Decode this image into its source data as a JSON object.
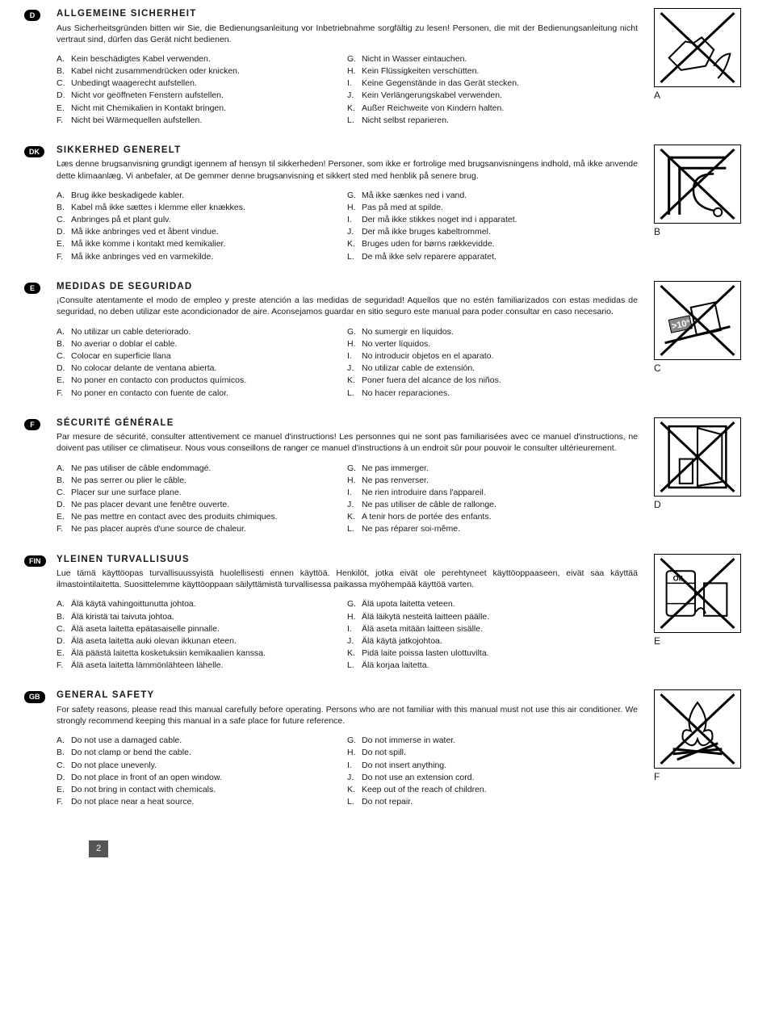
{
  "page_number": "2",
  "figure_labels": [
    "A",
    "B",
    "C",
    "D",
    "E",
    "F"
  ],
  "sections": [
    {
      "badge": "D",
      "heading": "ALLGEMEINE SICHERHEIT",
      "intro": "Aus Sicherheitsgründen bitten wir Sie, die Bedienungsanleitung vor Inbetriebnahme sorgfältig zu lesen! Personen, die mit der Bedienungsanleitung nicht vertraut sind, dürfen das Gerät nicht bedienen.",
      "left": [
        [
          "A.",
          "Kein beschädigtes Kabel verwenden."
        ],
        [
          "B.",
          "Kabel nicht zusammendrücken oder knicken."
        ],
        [
          "C.",
          "Unbedingt waagerecht aufstellen."
        ],
        [
          "D.",
          "Nicht vor geöffneten Fenstern aufstellen."
        ],
        [
          "E.",
          "Nicht mit Chemikalien in Kontakt bringen."
        ],
        [
          "F.",
          "Nicht bei Wärmequellen aufstellen."
        ]
      ],
      "right": [
        [
          "G.",
          "Nicht in Wasser eintauchen."
        ],
        [
          "H.",
          "Kein Flüssigkeiten verschütten."
        ],
        [
          "I.",
          "Keine Gegenstände in das Gerät stecken."
        ],
        [
          "J.",
          "Kein Verlängerungskabel verwenden."
        ],
        [
          "K.",
          "Außer Reichweite von Kindern halten."
        ],
        [
          "L.",
          "Nicht selbst reparieren."
        ]
      ]
    },
    {
      "badge": "DK",
      "heading": "SIKKERHED GENERELT",
      "intro": "Læs denne brugsanvisning grundigt igennem af hensyn til sikkerheden! Personer, som ikke er fortrolige med brugsanvisningens indhold, må ikke anvende dette klimaanlæg. Vi anbefaler, at De gemmer denne brugsanvisning et sikkert sted med henblik på senere brug.",
      "left": [
        [
          "A.",
          "Brug ikke beskadigede kabler."
        ],
        [
          "B.",
          "Kabel må ikke sættes i klemme eller knækkes."
        ],
        [
          "C.",
          "Anbringes på et plant gulv."
        ],
        [
          "D.",
          "Må ikke anbringes ved et åbent vindue."
        ],
        [
          "E.",
          "Må ikke komme i kontakt med kemikalier."
        ],
        [
          "F.",
          "Må ikke anbringes ved en varmekilde."
        ]
      ],
      "right": [
        [
          "G.",
          "Må ikke sænkes ned i vand."
        ],
        [
          "H.",
          "Pas på med at spilde."
        ],
        [
          "I.",
          "Der må ikke stikkes noget ind i apparatet."
        ],
        [
          "J.",
          "Der må ikke bruges kabeltrommel."
        ],
        [
          "K.",
          "Bruges uden for børns rækkevidde."
        ],
        [
          "L.",
          "De må ikke selv reparere apparatet."
        ]
      ]
    },
    {
      "badge": "E",
      "heading": "MEDIDAS DE SEGURIDAD",
      "intro": "¡Consulte atentamente el modo de empleo y preste atención a las medidas de seguridad! Aquellos que no estén familiarizados con estas medidas de seguridad, no deben utilizar este acondicionador de aire. Aconsejamos guardar en sitio seguro este manual para poder consultar en caso necesario.",
      "left": [
        [
          "A.",
          "No utilizar un cable deteriorado."
        ],
        [
          "B.",
          "No averiar o doblar el cable."
        ],
        [
          "C.",
          "Colocar en superficie llana"
        ],
        [
          "D.",
          "No colocar delante de ventana abierta."
        ],
        [
          "E.",
          "No poner en contacto con productos químicos."
        ],
        [
          "F.",
          "No poner en contacto con fuente de calor."
        ]
      ],
      "right": [
        [
          "G.",
          "No sumergir en líquidos."
        ],
        [
          "H.",
          "No verter líquidos."
        ],
        [
          "I.",
          "No introducir objetos en el aparato."
        ],
        [
          "J.",
          "No utilizar cable de extensión."
        ],
        [
          "K.",
          "Poner fuera del alcance de los niños."
        ],
        [
          "L.",
          "No hacer reparaciones."
        ]
      ]
    },
    {
      "badge": "F",
      "heading": "SÉCURITÉ GÉNÉRALE",
      "intro": "Par mesure de sécurité, consulter attentivement ce manuel d'instructions! Les personnes qui ne sont pas familiarisées avec ce manuel d'instructions, ne doivent pas utiliser ce climatiseur. Nous vous conseillons de ranger ce manuel d'instructions à un endroit sûr pour pouvoir le consulter ultérieurement.",
      "left": [
        [
          "A.",
          "Ne pas utiliser de câble endommagé."
        ],
        [
          "B.",
          "Ne pas serrer ou plier le câble."
        ],
        [
          "C.",
          "Placer sur une surface plane."
        ],
        [
          "D.",
          "Ne pas placer devant une fenêtre ouverte."
        ],
        [
          "E.",
          "Ne pas mettre en contact avec des produits chimiques."
        ],
        [
          "F.",
          "Ne pas placer auprès d'une source de chaleur."
        ]
      ],
      "right": [
        [
          "G.",
          "Ne pas immerger."
        ],
        [
          "H.",
          "Ne pas renverser."
        ],
        [
          "I.",
          "Ne rien introduire dans l'appareil."
        ],
        [
          "J.",
          "Ne pas utiliser de câble de rallonge."
        ],
        [
          "K.",
          "A tenir hors de portée des enfants."
        ],
        [
          "L.",
          "Ne pas réparer soi-même."
        ]
      ]
    },
    {
      "badge": "FIN",
      "heading": "YLEINEN TURVALLISUUS",
      "intro": "Lue tämä käyttöopas turvallisuussyistä huolellisesti ennen käyttöä. Henkilöt, jotka eivät ole perehtyneet käyttöoppaaseen, eivät saa käyttää ilmastointilaitetta. Suosittelemme käyttöoppaan säilyttämistä turvallisessa paikassa myöhempää käyttöä varten.",
      "left": [
        [
          "A.",
          "Älä käytä vahingoittunutta johtoa."
        ],
        [
          "B.",
          "Älä kiristä tai taivuta johtoa."
        ],
        [
          "C.",
          "Älä aseta laitetta epätasaiselle pinnalle."
        ],
        [
          "D.",
          "Älä aseta laitetta auki olevan ikkunan eteen."
        ],
        [
          "E.",
          "Älä päästä laitetta kosketuksiin kemikaalien kanssa."
        ],
        [
          "F.",
          "Älä aseta laitetta lämmönlähteen lähelle."
        ]
      ],
      "right": [
        [
          "G.",
          "Älä upota laitetta veteen."
        ],
        [
          "H.",
          "Älä läikytä nesteitä laitteen päälle."
        ],
        [
          "I.",
          "Älä aseta mitään laitteen sisälle."
        ],
        [
          "J.",
          "Älä käytä jatkojohtoa."
        ],
        [
          "K.",
          "Pidä laite poissa lasten ulottuvilta."
        ],
        [
          "L.",
          "Älä korjaa laitetta."
        ]
      ]
    },
    {
      "badge": "GB",
      "heading": "GENERAL SAFETY",
      "intro": "For safety reasons, please read this manual carefully before operating. Persons who are not familiar with this manual must not use this air conditioner. We strongly recommend keeping this manual in a safe place for future reference.",
      "left": [
        [
          "A.",
          "Do not use a damaged cable."
        ],
        [
          "B.",
          "Do not clamp or bend the cable."
        ],
        [
          "C.",
          "Do not place unevenly."
        ],
        [
          "D.",
          "Do not place in front of an open window."
        ],
        [
          "E.",
          "Do not bring in contact with chemicals."
        ],
        [
          "F.",
          "Do not place near a heat source."
        ]
      ],
      "right": [
        [
          "G.",
          "Do not immerse in water."
        ],
        [
          "H.",
          "Do not spill."
        ],
        [
          "I.",
          "Do not insert anything."
        ],
        [
          "J.",
          "Do not use an extension cord."
        ],
        [
          "K.",
          "Keep out of the reach of children."
        ],
        [
          "L.",
          "Do not repair."
        ]
      ]
    }
  ]
}
